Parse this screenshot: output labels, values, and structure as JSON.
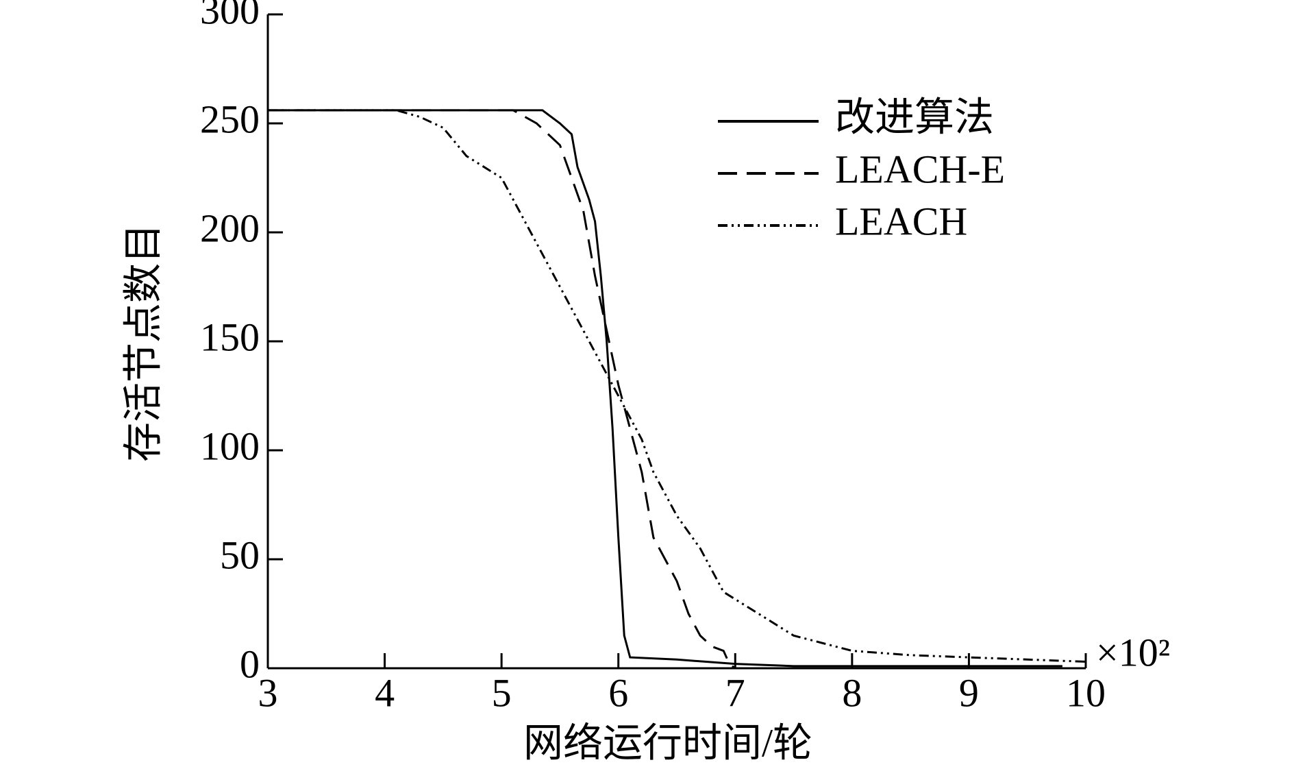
{
  "chart_data": {
    "type": "line",
    "xlabel": "网络运行时间/轮",
    "ylabel": "存活节点数目",
    "x_multiplier": "×10²",
    "xlim": [
      3,
      10
    ],
    "xticks": [
      3,
      4,
      5,
      6,
      7,
      8,
      9,
      10
    ],
    "ylim": [
      0,
      300
    ],
    "yticks": [
      0,
      50,
      100,
      150,
      200,
      250,
      300
    ],
    "legend": "upper right",
    "series": [
      {
        "name": "改进算法",
        "color": "#000000",
        "dash": "solid",
        "x": [
          3,
          5.35,
          5.5,
          5.6,
          5.65,
          5.75,
          5.8,
          5.85,
          5.9,
          5.95,
          6.0,
          6.05,
          6.1,
          6.5,
          7.0,
          7.5,
          9.8
        ],
        "values": [
          256,
          256,
          250,
          245,
          230,
          215,
          205,
          180,
          150,
          110,
          60,
          15,
          5,
          4,
          2,
          1,
          1
        ]
      },
      {
        "name": "LEACH-E",
        "color": "#000000",
        "dash": "dashed",
        "x": [
          3,
          5.1,
          5.3,
          5.5,
          5.6,
          5.7,
          5.8,
          5.9,
          6.0,
          6.1,
          6.2,
          6.3,
          6.4,
          6.5,
          6.6,
          6.7,
          6.8,
          6.9,
          6.95,
          7.0
        ],
        "values": [
          256,
          256,
          250,
          240,
          225,
          210,
          180,
          155,
          130,
          110,
          90,
          60,
          50,
          40,
          25,
          15,
          10,
          8,
          2,
          0
        ]
      },
      {
        "name": "LEACH",
        "color": "#000000",
        "dash": "dashdotdot",
        "x": [
          3,
          4.1,
          4.3,
          4.5,
          4.7,
          5.0,
          5.2,
          5.4,
          5.6,
          5.8,
          6.0,
          6.2,
          6.3,
          6.5,
          6.7,
          6.9,
          7.2,
          7.5,
          8.0,
          8.5,
          9.0,
          9.5,
          10
        ],
        "values": [
          256,
          256,
          253,
          248,
          235,
          225,
          205,
          185,
          165,
          145,
          125,
          105,
          90,
          70,
          55,
          35,
          25,
          15,
          8,
          6,
          5,
          4,
          3
        ]
      }
    ]
  }
}
